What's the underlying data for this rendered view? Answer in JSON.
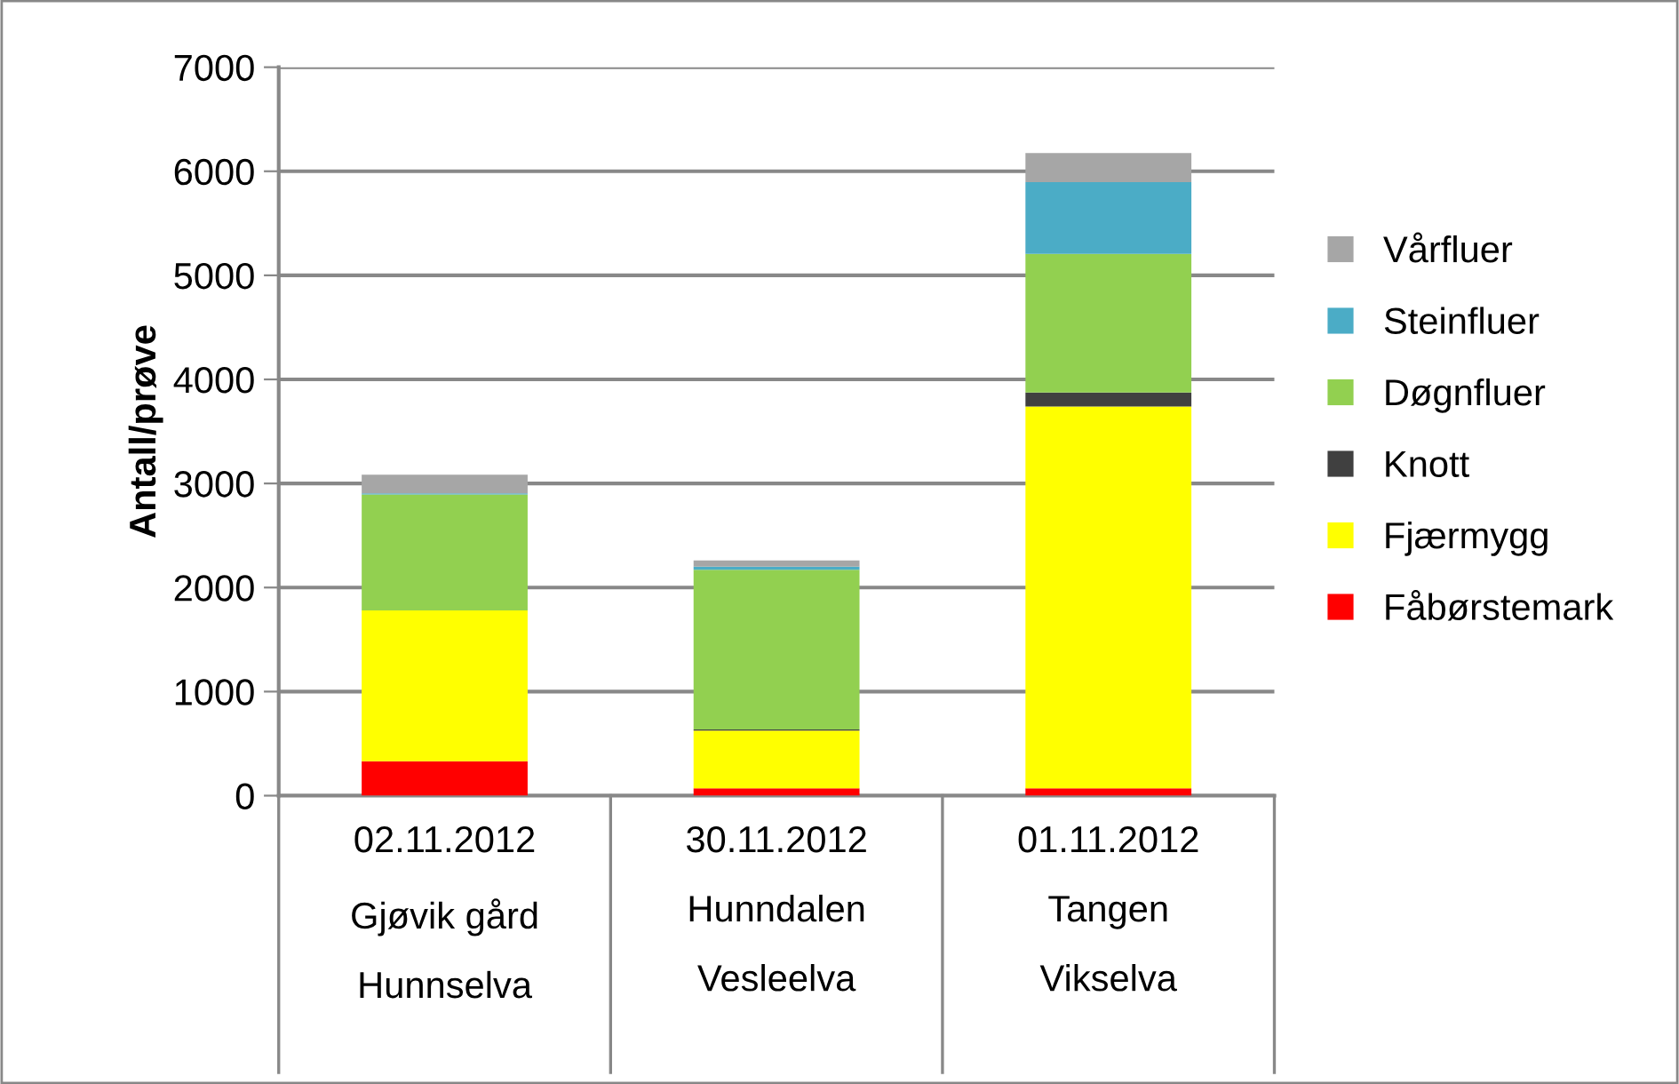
{
  "chart_data": {
    "type": "bar",
    "stacked": true,
    "ylabel": "Antall/prøve",
    "categories": [
      "02.11.2012\nGjøvik gård\nHunnselva",
      "30.11.2012\nHunndalen\nVesleelva",
      "01.11.2012\nTangen\nVikselva"
    ],
    "series": [
      {
        "name": "Fåbørstemark",
        "color": "#ff0000",
        "values": [
          330,
          70,
          70
        ]
      },
      {
        "name": "Fjærmygg",
        "color": "#ffff00",
        "values": [
          1450,
          555,
          3670
        ]
      },
      {
        "name": "Knott",
        "color": "#404040",
        "values": [
          0,
          10,
          135
        ]
      },
      {
        "name": "Døgnfluer",
        "color": "#92d050",
        "values": [
          1115,
          1535,
          1330
        ]
      },
      {
        "name": "Steinfluer",
        "color": "#4bacc6",
        "values": [
          10,
          30,
          690
        ]
      },
      {
        "name": "Vårfluer",
        "color": "#a6a6a6",
        "values": [
          180,
          60,
          280
        ]
      }
    ],
    "ylim": [
      0,
      7000
    ],
    "yticks": [
      0,
      1000,
      2000,
      3000,
      4000,
      5000,
      6000,
      7000
    ],
    "grid": "y",
    "legend": "right"
  }
}
